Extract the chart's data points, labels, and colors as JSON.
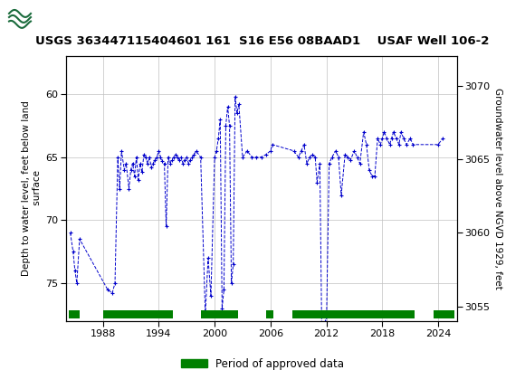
{
  "title": "USGS 363447115404601 161  S16 E56 08BAAD1    USAF Well 106-2",
  "ylabel_left": "Depth to water level, feet below land\n surface",
  "ylabel_right": "Groundwater level above NGVD 1929, feet",
  "ylim_left": [
    78,
    57
  ],
  "ylim_right": [
    3054,
    3072
  ],
  "xlim": [
    1984,
    2026
  ],
  "xticks": [
    1988,
    1994,
    2000,
    2006,
    2012,
    2018,
    2024
  ],
  "yticks_left": [
    60,
    65,
    70,
    75
  ],
  "yticks_right": [
    3055,
    3060,
    3065,
    3070
  ],
  "line_color": "#0000CC",
  "approved_color": "#008000",
  "header_bg": "#1a6b3c",
  "header_text": "#ffffff",
  "background_color": "#ffffff",
  "plot_bg": "#ffffff",
  "title_fontsize": 9.5,
  "axis_label_fontsize": 7.5,
  "tick_fontsize": 8,
  "legend_label": "Period of approved data",
  "approved_periods": [
    [
      1984.3,
      1985.5
    ],
    [
      1988.0,
      1995.5
    ],
    [
      1998.5,
      2002.5
    ],
    [
      2005.5,
      2006.3
    ],
    [
      2008.3,
      2021.5
    ],
    [
      2023.5,
      2025.7
    ]
  ],
  "data_x": [
    1984.5,
    1984.8,
    1985.0,
    1985.2,
    1985.5,
    1988.5,
    1989.0,
    1989.3,
    1989.6,
    1989.8,
    1990.0,
    1990.3,
    1990.5,
    1990.8,
    1991.0,
    1991.2,
    1991.4,
    1991.6,
    1991.8,
    1992.0,
    1992.2,
    1992.4,
    1992.6,
    1992.8,
    1993.0,
    1993.2,
    1993.4,
    1993.6,
    1993.8,
    1994.0,
    1994.2,
    1994.4,
    1994.6,
    1994.8,
    1995.0,
    1995.2,
    1995.4,
    1995.6,
    1995.8,
    1996.0,
    1996.2,
    1996.4,
    1996.6,
    1996.8,
    1997.0,
    1997.2,
    1997.4,
    1997.6,
    1997.8,
    1998.0,
    1998.5,
    1999.0,
    1999.3,
    1999.6,
    2000.0,
    2000.2,
    2000.4,
    2000.6,
    2000.8,
    2001.0,
    2001.2,
    2001.4,
    2001.6,
    2001.8,
    2002.0,
    2002.2,
    2002.4,
    2002.6,
    2003.0,
    2003.5,
    2004.0,
    2004.5,
    2005.0,
    2005.5,
    2006.0,
    2006.2,
    2008.5,
    2009.0,
    2009.3,
    2009.6,
    2009.9,
    2010.2,
    2010.5,
    2010.8,
    2011.0,
    2011.3,
    2011.5,
    2011.8,
    2012.0,
    2012.3,
    2012.6,
    2013.0,
    2013.3,
    2013.6,
    2014.0,
    2014.3,
    2014.6,
    2015.0,
    2015.3,
    2015.6,
    2016.0,
    2016.3,
    2016.6,
    2016.9,
    2017.2,
    2017.5,
    2017.8,
    2018.0,
    2018.2,
    2018.5,
    2018.8,
    2019.0,
    2019.2,
    2019.5,
    2019.8,
    2020.0,
    2020.3,
    2020.6,
    2021.0,
    2021.3,
    2024.0,
    2024.5
  ],
  "data_y": [
    71.0,
    72.5,
    74.0,
    75.0,
    71.5,
    75.5,
    75.8,
    75.0,
    65.0,
    67.5,
    64.5,
    66.0,
    65.5,
    67.5,
    66.0,
    65.5,
    66.5,
    65.0,
    66.8,
    65.5,
    66.2,
    64.8,
    65.0,
    65.5,
    65.0,
    65.8,
    65.5,
    65.2,
    65.0,
    64.5,
    65.0,
    65.3,
    65.5,
    70.5,
    65.0,
    65.5,
    65.2,
    65.0,
    64.8,
    65.0,
    65.2,
    65.0,
    65.5,
    65.2,
    65.0,
    65.5,
    65.2,
    65.0,
    64.8,
    64.5,
    65.0,
    77.5,
    73.0,
    76.0,
    65.0,
    64.5,
    63.5,
    62.0,
    77.0,
    75.5,
    62.5,
    61.0,
    62.5,
    75.0,
    73.5,
    60.2,
    61.5,
    60.8,
    65.0,
    64.5,
    65.0,
    65.0,
    65.0,
    64.8,
    64.5,
    64.0,
    64.5,
    65.0,
    64.5,
    64.0,
    65.5,
    65.0,
    64.8,
    65.0,
    67.0,
    65.5,
    78.5,
    78.0,
    78.5,
    65.5,
    65.0,
    64.5,
    65.0,
    68.0,
    64.8,
    65.0,
    65.2,
    64.5,
    65.0,
    65.5,
    63.0,
    64.0,
    66.0,
    66.5,
    66.5,
    63.5,
    64.0,
    63.5,
    63.0,
    63.5,
    64.0,
    63.5,
    63.0,
    63.5,
    64.0,
    63.0,
    63.5,
    64.0,
    63.5,
    64.0,
    64.0,
    63.5
  ]
}
